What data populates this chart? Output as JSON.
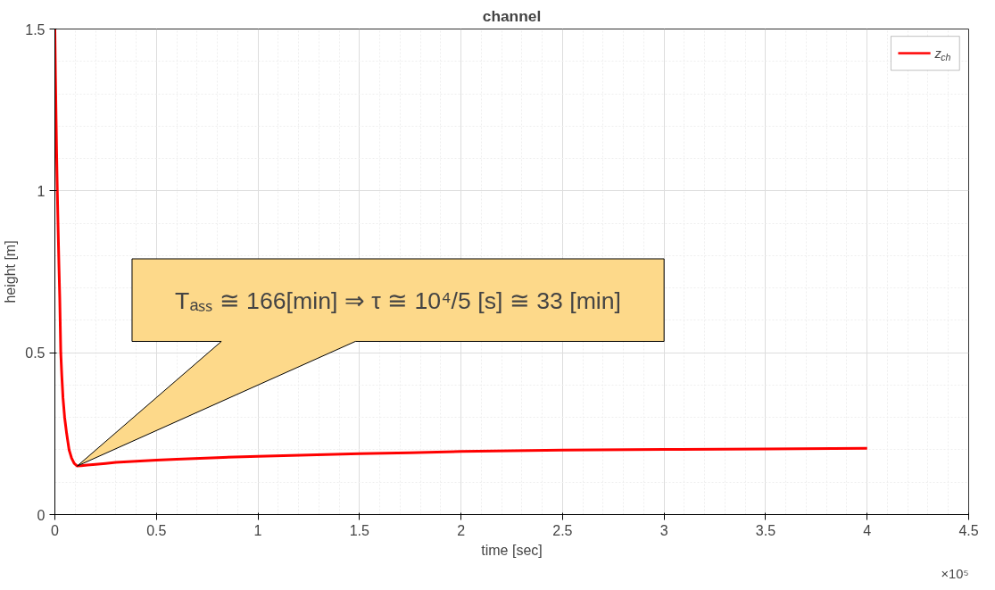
{
  "chart_data": {
    "type": "line",
    "title": "channel",
    "xlabel": "time [sec]",
    "ylabel": "height [m]",
    "series": [
      {
        "name": "z$_{ch}$",
        "color": "#ff0000",
        "x": [
          0,
          0.003,
          0.006,
          0.009,
          0.012,
          0.016,
          0.02,
          0.024,
          0.029,
          0.034,
          0.04,
          0.048,
          0.058,
          0.07,
          0.082,
          0.095,
          0.11,
          0.13,
          0.16,
          0.2,
          0.25,
          0.3,
          0.4,
          0.5,
          0.6,
          0.8,
          1.0,
          1.25,
          1.5,
          1.75,
          2.0,
          2.5,
          3.0,
          3.5,
          4.0
        ],
        "values": [
          1.5,
          1.35,
          1.22,
          1.1,
          1.0,
          0.88,
          0.77,
          0.67,
          0.5,
          0.43,
          0.36,
          0.3,
          0.25,
          0.2,
          0.175,
          0.158,
          0.15,
          0.151,
          0.153,
          0.155,
          0.158,
          0.161,
          0.165,
          0.168,
          0.171,
          0.176,
          0.18,
          0.184,
          0.188,
          0.191,
          0.195,
          0.199,
          0.201,
          0.203,
          0.205
        ]
      }
    ],
    "xlim": [
      0,
      4.5
    ],
    "ylim": [
      0,
      1.5
    ],
    "xticks": [
      0,
      0.5,
      1,
      1.5,
      2,
      2.5,
      3,
      3.5,
      4,
      4.5
    ],
    "yticks": [
      0,
      0.5,
      1,
      1.5
    ],
    "annotations": [
      "×10⁵",
      "Tₐₛₛ ≅ 166[min] ⇒ τ ≅ 10⁴/5 [s] ≅ 33 [min]"
    ],
    "grid": true,
    "legend": "top right",
    "line_style": "solid",
    "marker": "none"
  }
}
